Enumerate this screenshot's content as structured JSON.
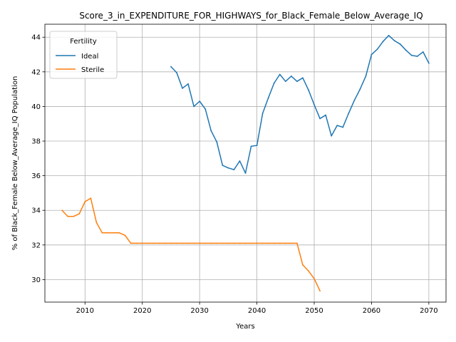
{
  "chart_data": {
    "type": "line",
    "title": "Score_3_in_EXPENDITURE_FOR_HIGHWAYS_for_Black_Female_Below_Average_IQ",
    "xlabel": "Years",
    "ylabel": "% of Black_Female Below_Average_IQ Population",
    "xlim": [
      2003,
      2073
    ],
    "ylim": [
      28.7,
      44.75
    ],
    "xticks": [
      2010,
      2020,
      2030,
      2040,
      2050,
      2060,
      2070
    ],
    "yticks": [
      30,
      32,
      34,
      36,
      38,
      40,
      42,
      44
    ],
    "grid": true,
    "legend": {
      "title": "Fertility",
      "placement": "top-left"
    },
    "series": [
      {
        "name": "Ideal",
        "color": "#1f77b4",
        "points": [
          [
            2025,
            42.3
          ],
          [
            2026,
            41.95
          ],
          [
            2027,
            41.05
          ],
          [
            2028,
            41.3
          ],
          [
            2029,
            40.0
          ],
          [
            2030,
            40.3
          ],
          [
            2031,
            39.85
          ],
          [
            2032,
            38.6
          ],
          [
            2033,
            37.95
          ],
          [
            2034,
            36.6
          ],
          [
            2035,
            36.45
          ],
          [
            2036,
            36.35
          ],
          [
            2037,
            36.85
          ],
          [
            2038,
            36.15
          ],
          [
            2039,
            37.7
          ],
          [
            2040,
            37.75
          ],
          [
            2041,
            39.6
          ],
          [
            2042,
            40.5
          ],
          [
            2043,
            41.35
          ],
          [
            2044,
            41.85
          ],
          [
            2045,
            41.45
          ],
          [
            2046,
            41.75
          ],
          [
            2047,
            41.45
          ],
          [
            2048,
            41.65
          ],
          [
            2049,
            40.95
          ],
          [
            2050,
            40.1
          ],
          [
            2051,
            39.3
          ],
          [
            2052,
            39.5
          ],
          [
            2053,
            38.3
          ],
          [
            2054,
            38.9
          ],
          [
            2055,
            38.8
          ],
          [
            2056,
            39.6
          ],
          [
            2057,
            40.35
          ],
          [
            2058,
            41.0
          ],
          [
            2059,
            41.75
          ],
          [
            2060,
            43.0
          ],
          [
            2061,
            43.3
          ],
          [
            2062,
            43.75
          ],
          [
            2063,
            44.1
          ],
          [
            2064,
            43.8
          ],
          [
            2065,
            43.6
          ],
          [
            2066,
            43.25
          ],
          [
            2067,
            42.95
          ],
          [
            2068,
            42.9
          ],
          [
            2069,
            43.15
          ],
          [
            2070,
            42.5
          ]
        ]
      },
      {
        "name": "Sterile",
        "color": "#ff7f0e",
        "points": [
          [
            2006,
            34.0
          ],
          [
            2007,
            33.65
          ],
          [
            2008,
            33.65
          ],
          [
            2009,
            33.8
          ],
          [
            2010,
            34.5
          ],
          [
            2011,
            34.7
          ],
          [
            2012,
            33.3
          ],
          [
            2013,
            32.7
          ],
          [
            2014,
            32.7
          ],
          [
            2015,
            32.7
          ],
          [
            2016,
            32.7
          ],
          [
            2017,
            32.55
          ],
          [
            2018,
            32.1
          ],
          [
            2019,
            32.1
          ],
          [
            2020,
            32.1
          ],
          [
            2021,
            32.1
          ],
          [
            2022,
            32.1
          ],
          [
            2023,
            32.1
          ],
          [
            2024,
            32.1
          ],
          [
            2025,
            32.1
          ],
          [
            2026,
            32.1
          ],
          [
            2027,
            32.1
          ],
          [
            2028,
            32.1
          ],
          [
            2029,
            32.1
          ],
          [
            2030,
            32.1
          ],
          [
            2031,
            32.1
          ],
          [
            2032,
            32.1
          ],
          [
            2033,
            32.1
          ],
          [
            2034,
            32.1
          ],
          [
            2035,
            32.1
          ],
          [
            2036,
            32.1
          ],
          [
            2037,
            32.1
          ],
          [
            2038,
            32.1
          ],
          [
            2039,
            32.1
          ],
          [
            2040,
            32.1
          ],
          [
            2041,
            32.1
          ],
          [
            2042,
            32.1
          ],
          [
            2043,
            32.1
          ],
          [
            2044,
            32.1
          ],
          [
            2045,
            32.1
          ],
          [
            2046,
            32.1
          ],
          [
            2047,
            32.1
          ],
          [
            2048,
            30.85
          ],
          [
            2049,
            30.5
          ],
          [
            2050,
            30.05
          ],
          [
            2051,
            29.35
          ]
        ]
      }
    ]
  }
}
